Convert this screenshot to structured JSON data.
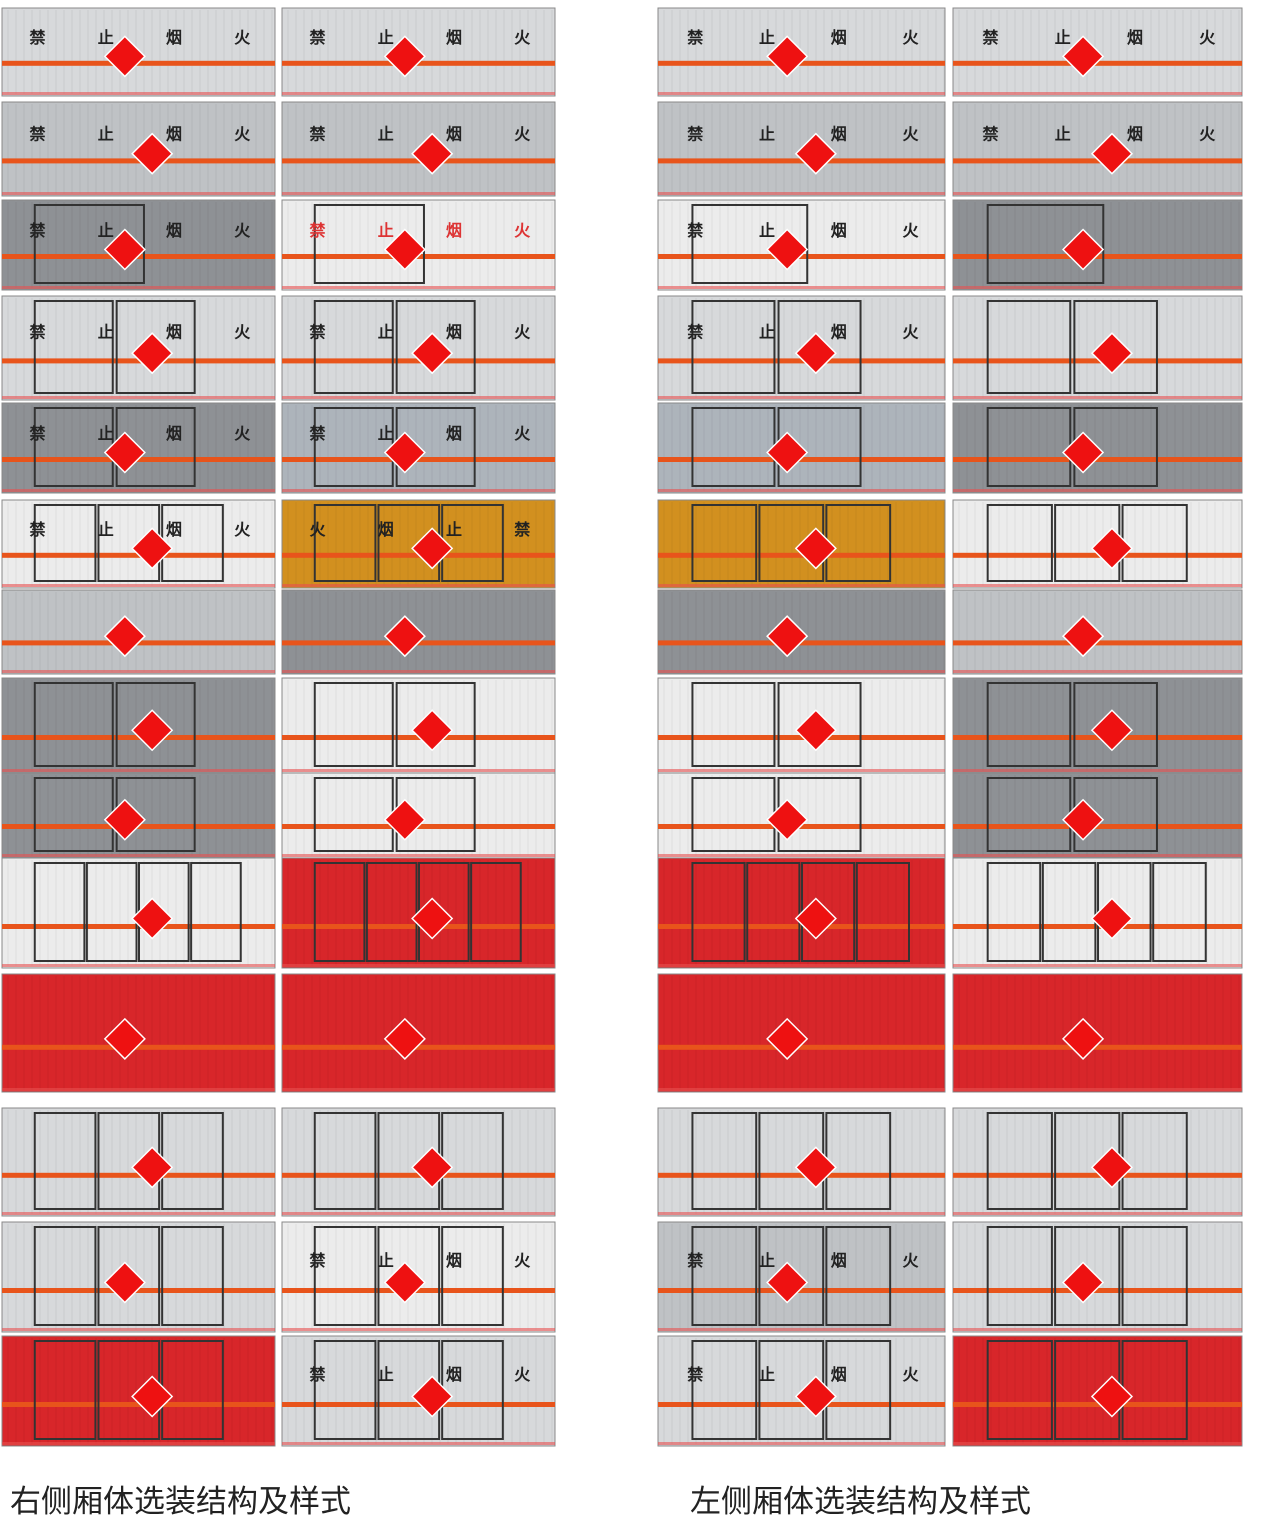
{
  "panel_texts": [
    [
      "禁",
      "止",
      "烟",
      "火"
    ],
    [
      "禁",
      "止",
      "烟",
      "火"
    ],
    [
      "禁",
      "止",
      "烟",
      "火"
    ],
    [
      "禁",
      "止",
      "烟",
      "火"
    ],
    [
      "禁",
      "止",
      "烟",
      "火"
    ],
    [
      "禁",
      "止",
      "烟",
      "火"
    ],
    [
      "禁",
      "止",
      "烟",
      "火"
    ],
    [
      "禁",
      "止",
      "烟",
      "火"
    ],
    [
      "禁",
      "止",
      "烟",
      "火"
    ],
    [
      "禁",
      "止",
      "烟",
      "火"
    ],
    [
      "禁",
      "止",
      "烟",
      "火"
    ],
    [
      "火",
      "烟",
      "止",
      "禁"
    ],
    [
      "禁",
      "止",
      "烟",
      "火"
    ],
    [
      "禁",
      "止",
      "烟",
      "火"
    ],
    [
      "禁",
      "止",
      "烟",
      "火"
    ],
    [
      "禁",
      "止",
      "烟",
      "火"
    ],
    [
      "禁",
      "止",
      "烟",
      "火"
    ],
    [
      "禁",
      "止",
      "烟",
      "火"
    ],
    [
      "禁",
      "止",
      "烟",
      "火"
    ],
    [
      "禁",
      "止",
      "烟",
      "火"
    ],
    [
      "禁",
      "止",
      "烟",
      "火"
    ],
    [
      "禁",
      "止",
      "烟",
      "火"
    ]
  ],
  "captions": {
    "right_side": "右侧厢体选装结构及样式",
    "left_side": "左侧厢体选装结构及样式"
  }
}
